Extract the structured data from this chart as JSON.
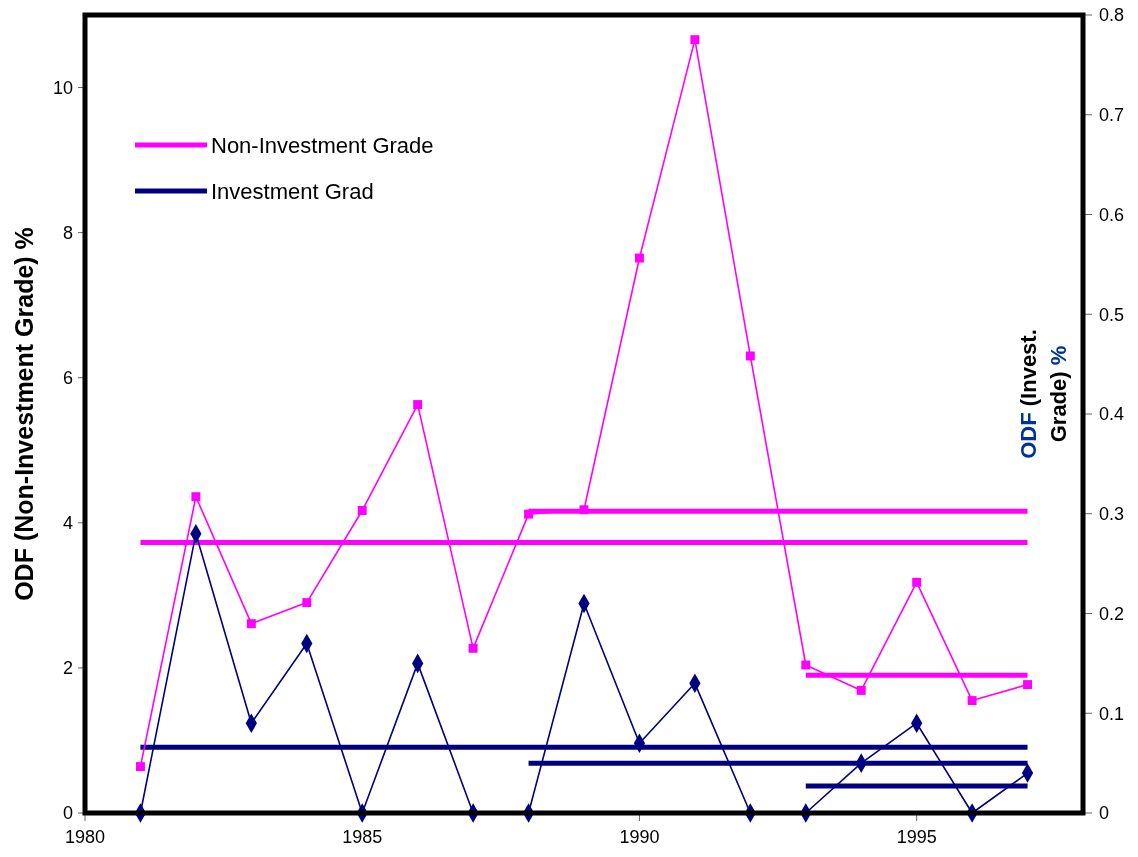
{
  "chart_data": {
    "type": "line",
    "ylabel": "ODF (Non-Investment Grade)  %",
    "y2label": "ODF (Invest. Grade) %",
    "xlim": [
      1980,
      1998
    ],
    "xticks": [
      {
        "value": 1980,
        "label": "1980"
      },
      {
        "value": 1985,
        "label": "1985"
      },
      {
        "value": 1990,
        "label": "1990"
      },
      {
        "value": 1995,
        "label": "1995"
      }
    ],
    "ylim": [
      0,
      11
    ],
    "yticks": [
      0,
      2,
      4,
      6,
      8,
      10
    ],
    "y2lim": [
      0,
      0.8
    ],
    "y2ticks": [
      0,
      0.1,
      0.2,
      0.3,
      0.4,
      0.5,
      0.6,
      0.7,
      0.8
    ],
    "x": [
      1981,
      1982,
      1983,
      1984,
      1985,
      1986,
      1987,
      1988,
      1989,
      1990,
      1991,
      1992,
      1993,
      1994,
      1995,
      1996,
      1997
    ],
    "series": [
      {
        "name": "Non-Investment Grade",
        "color": "#ff00ff",
        "marker": "square",
        "values": [
          0.64,
          4.36,
          2.61,
          2.9,
          4.17,
          5.63,
          2.27,
          4.12,
          4.18,
          7.65,
          10.66,
          6.3,
          2.04,
          1.69,
          3.18,
          1.55,
          1.77
        ]
      },
      {
        "name": "Investment Grad",
        "color": "#000080",
        "marker": "diamond",
        "axis": "y2",
        "values": [
          0,
          0.28,
          0.09,
          0.17,
          0,
          0.15,
          0,
          0,
          0.21,
          0.07,
          0.13,
          0,
          0,
          0.05,
          0.09,
          0,
          0.04
        ]
      },
      {
        "color": "#ff00ff",
        "marker": "none",
        "x": [
          1981,
          1997
        ],
        "values": [
          3.73,
          3.73
        ]
      },
      {
        "color": "#ff00ff",
        "marker": "none",
        "x": [
          1988,
          1997
        ],
        "values": [
          4.16,
          4.16
        ]
      },
      {
        "color": "#ff00ff",
        "marker": "none",
        "x": [
          1993,
          1997
        ],
        "values": [
          1.9,
          1.9
        ]
      },
      {
        "color": "#000080",
        "marker": "none",
        "axis": "y2",
        "x": [
          1981,
          1997
        ],
        "values": [
          0.066,
          0.066
        ]
      },
      {
        "color": "#000080",
        "marker": "none",
        "axis": "y2",
        "x": [
          1988,
          1997
        ],
        "values": [
          0.05,
          0.05
        ]
      },
      {
        "color": "#000080",
        "marker": "none",
        "axis": "y2",
        "x": [
          1993,
          1997
        ],
        "values": [
          0.027,
          0.027
        ]
      }
    ],
    "grid": false,
    "legend": "top left"
  }
}
